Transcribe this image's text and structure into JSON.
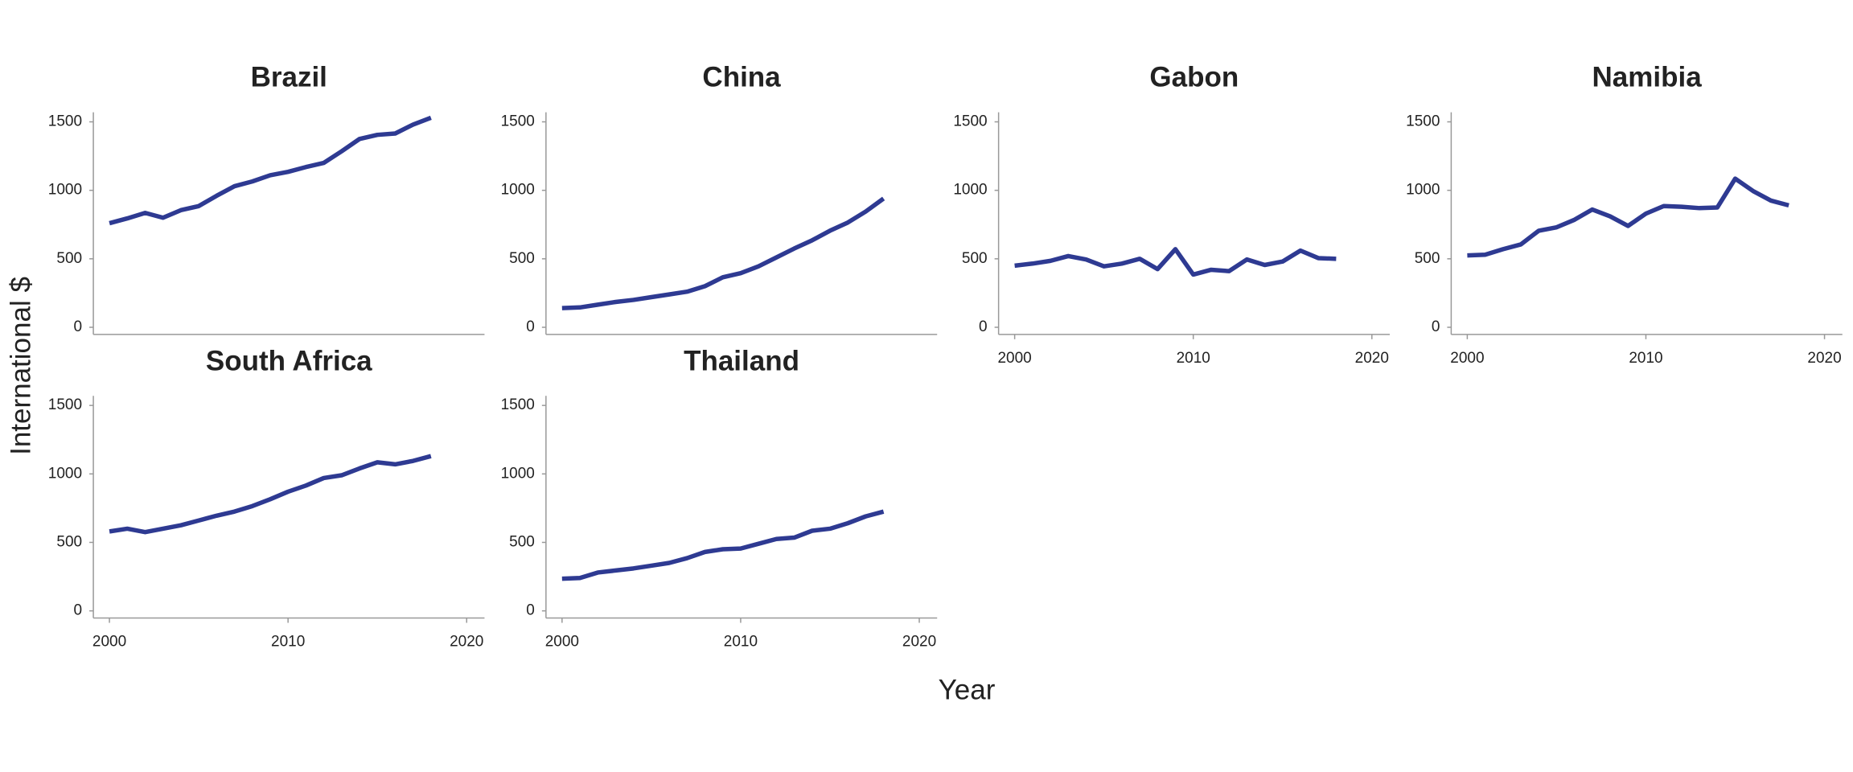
{
  "xlabel": "Year",
  "ylabel": "International $",
  "chart_data": [
    {
      "type": "line",
      "title": "Brazil",
      "color": "#2e3a92",
      "x": [
        2000,
        2001,
        2002,
        2003,
        2004,
        2005,
        2006,
        2007,
        2008,
        2009,
        2010,
        2011,
        2012,
        2013,
        2014,
        2015,
        2016,
        2017,
        2018
      ],
      "values": [
        760,
        795,
        835,
        800,
        855,
        885,
        960,
        1030,
        1065,
        1110,
        1135,
        1170,
        1200,
        1285,
        1375,
        1405,
        1415,
        1480,
        1530
      ],
      "xlim": [
        1999.1,
        2021
      ],
      "ylim": [
        -52,
        1570
      ],
      "yticks": [
        0,
        500,
        1000,
        1500
      ]
    },
    {
      "type": "line",
      "title": "China",
      "color": "#2e3a92",
      "x": [
        2000,
        2001,
        2002,
        2003,
        2004,
        2005,
        2006,
        2007,
        2008,
        2009,
        2010,
        2011,
        2012,
        2013,
        2014,
        2015,
        2016,
        2017,
        2018
      ],
      "values": [
        140,
        145,
        165,
        185,
        200,
        220,
        240,
        260,
        300,
        365,
        395,
        445,
        510,
        575,
        635,
        705,
        765,
        845,
        940
      ],
      "xlim": [
        1999.1,
        2021
      ],
      "ylim": [
        -52,
        1570
      ],
      "yticks": [
        0,
        500,
        1000,
        1500
      ]
    },
    {
      "type": "line",
      "title": "Gabon",
      "color": "#2e3a92",
      "x": [
        2000,
        2001,
        2002,
        2003,
        2004,
        2005,
        2006,
        2007,
        2008,
        2009,
        2010,
        2011,
        2012,
        2013,
        2014,
        2015,
        2016,
        2017,
        2018
      ],
      "values": [
        450,
        465,
        485,
        520,
        495,
        445,
        465,
        500,
        425,
        570,
        385,
        420,
        410,
        495,
        455,
        480,
        560,
        505,
        500
      ],
      "xlim": [
        1999.1,
        2021
      ],
      "ylim": [
        -52,
        1570
      ],
      "xticks": [
        2000,
        2010,
        2020
      ],
      "yticks": [
        0,
        500,
        1000,
        1500
      ]
    },
    {
      "type": "line",
      "title": "Namibia",
      "color": "#2e3a92",
      "x": [
        2000,
        2001,
        2002,
        2003,
        2004,
        2005,
        2006,
        2007,
        2008,
        2009,
        2010,
        2011,
        2012,
        2013,
        2014,
        2015,
        2016,
        2017,
        2018
      ],
      "values": [
        525,
        530,
        570,
        605,
        705,
        730,
        785,
        860,
        810,
        740,
        830,
        885,
        880,
        870,
        875,
        1085,
        995,
        925,
        890
      ],
      "xlim": [
        1999.1,
        2021
      ],
      "ylim": [
        -52,
        1570
      ],
      "xticks": [
        2000,
        2010,
        2020
      ],
      "yticks": [
        0,
        500,
        1000,
        1500
      ]
    },
    {
      "type": "line",
      "title": "South Africa",
      "color": "#2e3a92",
      "x": [
        2000,
        2001,
        2002,
        2003,
        2004,
        2005,
        2006,
        2007,
        2008,
        2009,
        2010,
        2011,
        2012,
        2013,
        2014,
        2015,
        2016,
        2017,
        2018
      ],
      "values": [
        580,
        600,
        575,
        600,
        625,
        660,
        695,
        725,
        765,
        815,
        870,
        915,
        970,
        990,
        1040,
        1085,
        1070,
        1095,
        1130
      ],
      "xlim": [
        1999.1,
        2021
      ],
      "ylim": [
        -52,
        1570
      ],
      "xticks": [
        2000,
        2010,
        2020
      ],
      "yticks": [
        0,
        500,
        1000,
        1500
      ]
    },
    {
      "type": "line",
      "title": "Thailand",
      "color": "#2e3a92",
      "x": [
        2000,
        2001,
        2002,
        2003,
        2004,
        2005,
        2006,
        2007,
        2008,
        2009,
        2010,
        2011,
        2012,
        2013,
        2014,
        2015,
        2016,
        2017,
        2018
      ],
      "values": [
        235,
        240,
        280,
        295,
        310,
        330,
        350,
        385,
        430,
        450,
        455,
        490,
        525,
        535,
        585,
        600,
        640,
        690,
        725
      ],
      "xlim": [
        1999.1,
        2021
      ],
      "ylim": [
        -52,
        1570
      ],
      "xticks": [
        2000,
        2010,
        2020
      ],
      "yticks": [
        0,
        500,
        1000,
        1500
      ]
    }
  ]
}
